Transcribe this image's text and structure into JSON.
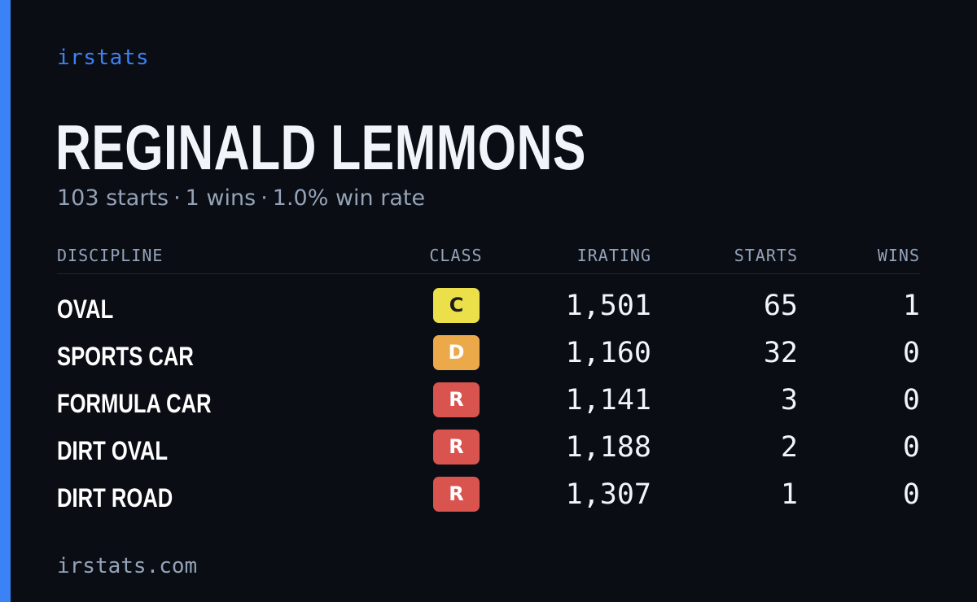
{
  "brand": "irstats",
  "player": {
    "name": "REGINALD LEMMONS",
    "starts": "103 starts",
    "wins": "1 wins",
    "win_rate": "1.0% win rate",
    "separator": "·"
  },
  "table": {
    "headers": {
      "discipline": "DISCIPLINE",
      "class": "CLASS",
      "irating": "IRATING",
      "starts": "STARTS",
      "wins": "WINS"
    },
    "rows": [
      {
        "discipline": "OVAL",
        "class": "C",
        "irating": "1,501",
        "starts": "65",
        "wins": "1"
      },
      {
        "discipline": "SPORTS CAR",
        "class": "D",
        "irating": "1,160",
        "starts": "32",
        "wins": "0"
      },
      {
        "discipline": "FORMULA CAR",
        "class": "R",
        "irating": "1,141",
        "starts": "3",
        "wins": "0"
      },
      {
        "discipline": "DIRT OVAL",
        "class": "R",
        "irating": "1,188",
        "starts": "2",
        "wins": "0"
      },
      {
        "discipline": "DIRT ROAD",
        "class": "R",
        "irating": "1,307",
        "starts": "1",
        "wins": "0"
      }
    ]
  },
  "class_colors": {
    "C": {
      "bg": "#ebe04a",
      "fg": "#1c1c1c"
    },
    "D": {
      "bg": "#eca94a",
      "fg": "#ffffff"
    },
    "R": {
      "bg": "#d9534f",
      "fg": "#ffffff"
    }
  },
  "colors": {
    "accent": "#3b82f6",
    "background": "#0a0d14",
    "muted": "#94a3b8"
  },
  "footer": "irstats.com"
}
